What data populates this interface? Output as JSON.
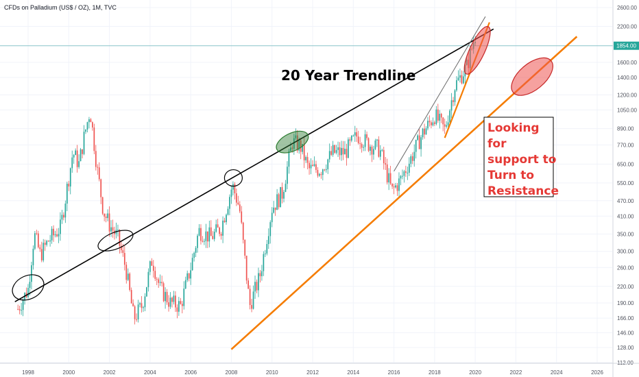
{
  "chart_data": {
    "type": "candlestick",
    "title": "CFDs on Palladium (US$ / OZ), 1M, TVC",
    "price_label": "1854.00",
    "x_ticks": [
      "1998",
      "2000",
      "2002",
      "2004",
      "2006",
      "2008",
      "2010",
      "2012",
      "2014",
      "2016",
      "2018",
      "2020",
      "2022",
      "2024",
      "2026"
    ],
    "y_ticks": [
      "2600.00",
      "2200.00",
      "1854.00",
      "1600.00",
      "1400.00",
      "1200.00",
      "1050.00",
      "890.00",
      "770.00",
      "650.00",
      "550.00",
      "470.00",
      "410.00",
      "350.00",
      "300.00",
      "260.00",
      "220.00",
      "190.00",
      "166.00",
      "146.00",
      "128.00",
      "112.00"
    ],
    "y_scale": "log",
    "annotations": {
      "trend_label": "20 Year Trendline",
      "support_label": [
        "Looking",
        "for",
        "support to",
        "Turn to",
        "Resistance"
      ]
    },
    "colors": {
      "up": "#26a69a",
      "down": "#ef5350",
      "trendline": "#000000",
      "support_line": "#f57c00",
      "price_line": "#89c4c8",
      "highlight_red": "#ef5350",
      "highlight_green": "#2e7d32",
      "annotation_red": "#e53935"
    },
    "monthly_anchors": [
      {
        "t": 1997.5,
        "v": 180
      },
      {
        "t": 1998.0,
        "v": 215
      },
      {
        "t": 1998.3,
        "v": 350
      },
      {
        "t": 1998.6,
        "v": 290
      },
      {
        "t": 1999.0,
        "v": 330
      },
      {
        "t": 1999.6,
        "v": 370
      },
      {
        "t": 2000.2,
        "v": 720
      },
      {
        "t": 2000.5,
        "v": 650
      },
      {
        "t": 2000.8,
        "v": 860
      },
      {
        "t": 2001.05,
        "v": 1050
      },
      {
        "t": 2001.4,
        "v": 620
      },
      {
        "t": 2001.7,
        "v": 430
      },
      {
        "t": 2002.0,
        "v": 380
      },
      {
        "t": 2002.4,
        "v": 340
      },
      {
        "t": 2002.8,
        "v": 260
      },
      {
        "t": 2003.2,
        "v": 165
      },
      {
        "t": 2003.6,
        "v": 185
      },
      {
        "t": 2004.1,
        "v": 280
      },
      {
        "t": 2004.5,
        "v": 215
      },
      {
        "t": 2005.0,
        "v": 190
      },
      {
        "t": 2005.5,
        "v": 185
      },
      {
        "t": 2006.0,
        "v": 260
      },
      {
        "t": 2006.4,
        "v": 360
      },
      {
        "t": 2007.0,
        "v": 340
      },
      {
        "t": 2007.5,
        "v": 370
      },
      {
        "t": 2008.05,
        "v": 540
      },
      {
        "t": 2008.4,
        "v": 440
      },
      {
        "t": 2008.9,
        "v": 185
      },
      {
        "t": 2009.4,
        "v": 240
      },
      {
        "t": 2010.0,
        "v": 440
      },
      {
        "t": 2010.5,
        "v": 500
      },
      {
        "t": 2011.0,
        "v": 790
      },
      {
        "t": 2011.4,
        "v": 760
      },
      {
        "t": 2011.8,
        "v": 620
      },
      {
        "t": 2012.4,
        "v": 620
      },
      {
        "t": 2013.0,
        "v": 720
      },
      {
        "t": 2013.6,
        "v": 720
      },
      {
        "t": 2014.2,
        "v": 840
      },
      {
        "t": 2014.7,
        "v": 780
      },
      {
        "t": 2015.3,
        "v": 740
      },
      {
        "t": 2015.9,
        "v": 510
      },
      {
        "t": 2016.3,
        "v": 560
      },
      {
        "t": 2016.9,
        "v": 700
      },
      {
        "t": 2017.4,
        "v": 850
      },
      {
        "t": 2018.0,
        "v": 1000
      },
      {
        "t": 2018.5,
        "v": 880
      },
      {
        "t": 2019.0,
        "v": 1300
      },
      {
        "t": 2019.6,
        "v": 1550
      },
      {
        "t": 2020.05,
        "v": 2100
      }
    ]
  }
}
